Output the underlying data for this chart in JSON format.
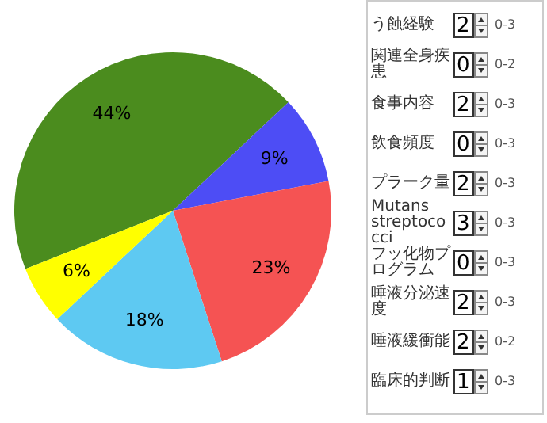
{
  "chart_data": [
    {
      "type": "pie",
      "categories": [
        null,
        null,
        null,
        null,
        null
      ],
      "values": [
        44,
        9,
        23,
        18,
        6
      ],
      "colors": [
        "#4b8c1e",
        "#4d4df5",
        "#f55353",
        "#5ec9f2",
        "#ffff00"
      ],
      "value_labels": [
        "44%",
        "9%",
        "23%",
        "18%",
        "6%"
      ],
      "legend": false
    },
    {
      "type": "other",
      "annotations": [
        "う蝕経験",
        "2",
        "0-3",
        "関連全身疾患",
        "0",
        "0-2",
        "食事内容",
        "2",
        "0-3",
        "飲食頻度",
        "0",
        "0-3",
        "プラーク量",
        "2",
        "0-3",
        "Mutans streptococci",
        "3",
        "0-3",
        "フッ化物プログラム",
        "0",
        "0-3",
        "唾液分泌速度",
        "2",
        "0-3",
        "唾液緩衝能",
        "2",
        "0-2",
        "臨床的判断",
        "1",
        "0-3"
      ]
    }
  ]
}
